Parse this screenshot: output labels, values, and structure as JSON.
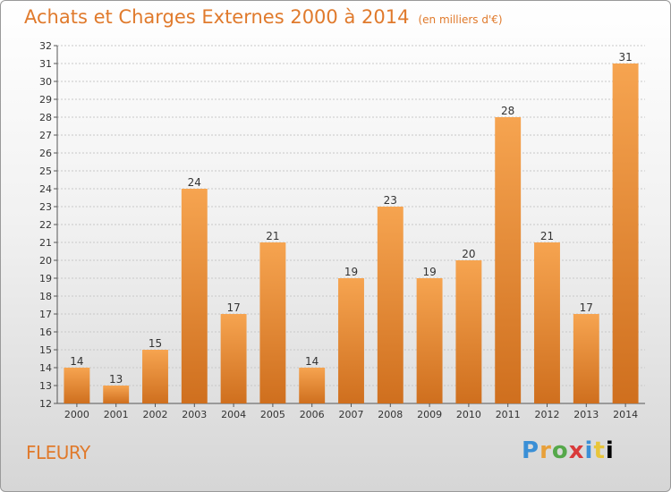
{
  "header": {
    "title": "Achats et Charges Externes 2000 à 2014",
    "subtitle": "(en milliers d'€)"
  },
  "footer": {
    "city": "FLEURY",
    "brand": "Proxiti"
  },
  "colors": {
    "accent": "#e07a2c",
    "bar_light": "#f6a450",
    "bar_dark": "#cf6f1e"
  },
  "chart_data": {
    "type": "bar",
    "title": "Achats et Charges Externes 2000 à 2014",
    "subtitle": "(en milliers d'€)",
    "xlabel": "",
    "ylabel": "",
    "categories": [
      "2000",
      "2001",
      "2002",
      "2003",
      "2004",
      "2005",
      "2006",
      "2007",
      "2008",
      "2009",
      "2010",
      "2011",
      "2012",
      "2013",
      "2014"
    ],
    "values": [
      14,
      13,
      15,
      24,
      17,
      21,
      14,
      19,
      23,
      19,
      20,
      28,
      21,
      17,
      31
    ],
    "ylim": [
      12,
      32
    ],
    "yticks": [
      12,
      13,
      14,
      15,
      16,
      17,
      18,
      19,
      20,
      21,
      22,
      23,
      24,
      25,
      26,
      27,
      28,
      29,
      30,
      31,
      32
    ],
    "grid": true,
    "data_labels": true
  }
}
